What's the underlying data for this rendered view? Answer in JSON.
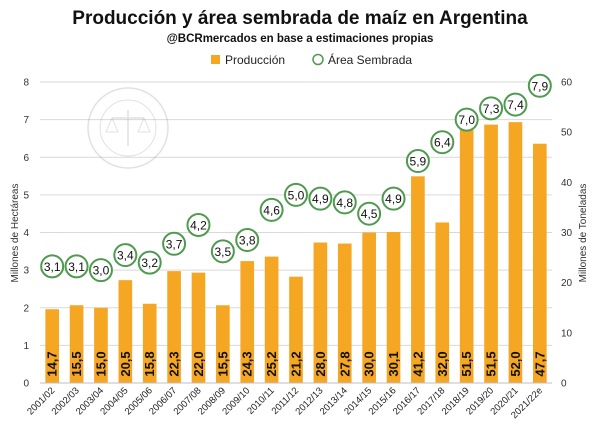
{
  "chart_data": {
    "type": "bar",
    "title": "Producción y área sembrada de maíz en Argentina",
    "subtitle": "@BCRmercados en base a estimaciones propias",
    "ylabel_left": "Millones de Hectáreas",
    "ylabel_right": "Millones de Toneladas",
    "ylim_left": [
      0,
      8
    ],
    "ylim_right": [
      0,
      60
    ],
    "yticks_left": [
      "0",
      "1",
      "2",
      "3",
      "4",
      "5",
      "6",
      "7",
      "8"
    ],
    "yticks_right": [
      "0",
      "10",
      "20",
      "30",
      "40",
      "50",
      "60"
    ],
    "legend_position": "top-center",
    "categories": [
      "2001/02",
      "2002/03",
      "2003/04",
      "2004/05",
      "2005/06",
      "2006/07",
      "2007/08",
      "2008/09",
      "2009/10",
      "2010/11",
      "2011/12",
      "2012/13",
      "2013/14",
      "2014/15",
      "2015/16",
      "2016/17",
      "2017/18",
      "2018/19",
      "2019/20",
      "2020/21",
      "2021/22e"
    ],
    "series": [
      {
        "name": "Producción",
        "axis": "right",
        "type": "bar",
        "color": "#F5A623",
        "values": [
          14.7,
          15.5,
          15.0,
          20.5,
          15.8,
          22.3,
          22.0,
          15.5,
          24.3,
          25.2,
          21.2,
          28.0,
          27.8,
          30.0,
          30.1,
          41.2,
          32.0,
          51.5,
          51.5,
          52.0,
          47.7
        ],
        "labels": [
          "14,7",
          "15,5",
          "15,0",
          "20,5",
          "15,8",
          "22,3",
          "22,0",
          "15,5",
          "24,3",
          "25,2",
          "21,2",
          "28,0",
          "27,8",
          "30,0",
          "30,1",
          "41,2",
          "32,0",
          "51,5",
          "51,5",
          "52,0",
          "47,7"
        ]
      },
      {
        "name": "Área Sembrada",
        "axis": "left",
        "type": "marker",
        "color": "#4E9A4E",
        "values": [
          3.1,
          3.1,
          3.0,
          3.4,
          3.2,
          3.7,
          4.2,
          3.5,
          3.8,
          4.6,
          5.0,
          4.9,
          4.8,
          4.5,
          4.9,
          5.9,
          6.4,
          7.0,
          7.3,
          7.4,
          7.9
        ],
        "labels": [
          "3,1",
          "3,1",
          "3,0",
          "3,4",
          "3,2",
          "3,7",
          "4,2",
          "3,5",
          "3,8",
          "4,6",
          "5,0",
          "4,9",
          "4,8",
          "4,5",
          "4,9",
          "5,9",
          "6,4",
          "7,0",
          "7,3",
          "7,4",
          "7,9"
        ]
      }
    ]
  }
}
